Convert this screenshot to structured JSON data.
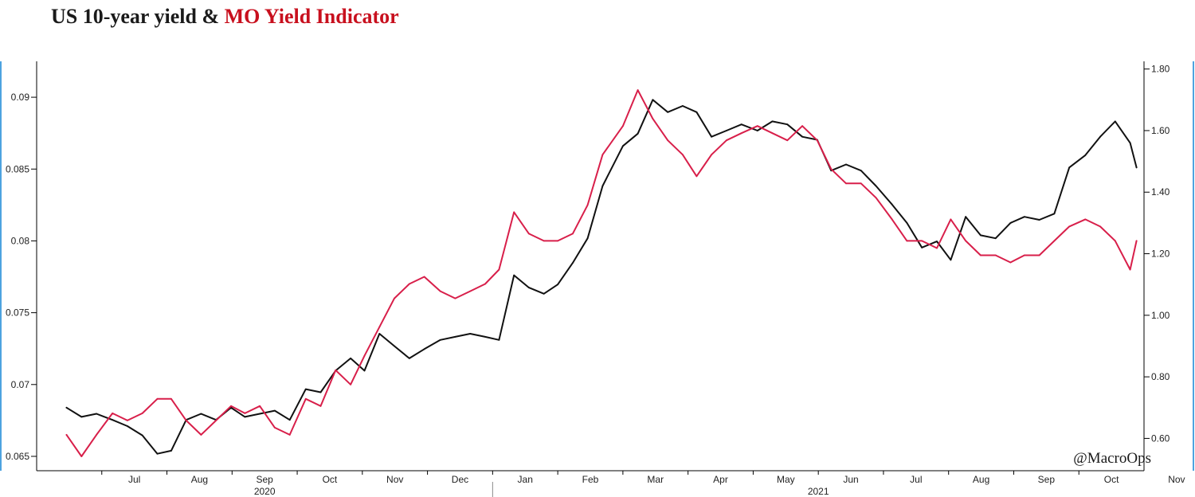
{
  "title": {
    "part1": "US 10-year yield & ",
    "part2": "MO Yield Indicator",
    "part2_color": "#c8101e"
  },
  "watermark": "@MacroOps",
  "chart_data": {
    "type": "line",
    "x_ticks": [
      "Jul",
      "Aug",
      "Sep",
      "Oct",
      "Nov",
      "Dec",
      "Jan",
      "Feb",
      "Mar",
      "Apr",
      "May",
      "Jun",
      "Jul",
      "Aug",
      "Sep",
      "Oct",
      "Nov"
    ],
    "x_start": "2020-06",
    "x_end": "2021-11",
    "years": [
      "2020",
      "2021"
    ],
    "y_left": {
      "ticks": [
        "0.065",
        "0.07",
        "0.075",
        "0.08",
        "0.085",
        "0.09"
      ],
      "range": [
        0.064,
        0.0925
      ]
    },
    "y_right": {
      "ticks": [
        "0.60",
        "0.80",
        "1.00",
        "1.20",
        "1.40",
        "1.60",
        "1.80"
      ],
      "range": [
        0.495,
        1.825
      ]
    },
    "series": [
      {
        "color": "#111111",
        "axis": "right",
        "points": [
          [
            "2020-06-15",
            0.7
          ],
          [
            "2020-06-22",
            0.67
          ],
          [
            "2020-06-29",
            0.68
          ],
          [
            "2020-07-06",
            0.66
          ],
          [
            "2020-07-13",
            0.64
          ],
          [
            "2020-07-20",
            0.61
          ],
          [
            "2020-07-27",
            0.55
          ],
          [
            "2020-08-03",
            0.56
          ],
          [
            "2020-08-10",
            0.66
          ],
          [
            "2020-08-17",
            0.68
          ],
          [
            "2020-08-24",
            0.66
          ],
          [
            "2020-08-31",
            0.7
          ],
          [
            "2020-09-07",
            0.67
          ],
          [
            "2020-09-14",
            0.68
          ],
          [
            "2020-09-21",
            0.69
          ],
          [
            "2020-09-28",
            0.66
          ],
          [
            "2020-10-05",
            0.76
          ],
          [
            "2020-10-12",
            0.75
          ],
          [
            "2020-10-19",
            0.82
          ],
          [
            "2020-10-26",
            0.86
          ],
          [
            "2020-11-02",
            0.82
          ],
          [
            "2020-11-09",
            0.94
          ],
          [
            "2020-11-16",
            0.9
          ],
          [
            "2020-11-23",
            0.86
          ],
          [
            "2020-11-30",
            0.89
          ],
          [
            "2020-12-07",
            0.92
          ],
          [
            "2020-12-14",
            0.93
          ],
          [
            "2020-12-21",
            0.94
          ],
          [
            "2020-12-28",
            0.93
          ],
          [
            "2021-01-04",
            0.92
          ],
          [
            "2021-01-11",
            1.13
          ],
          [
            "2021-01-18",
            1.09
          ],
          [
            "2021-01-25",
            1.07
          ],
          [
            "2021-02-01",
            1.1
          ],
          [
            "2021-02-08",
            1.17
          ],
          [
            "2021-02-15",
            1.25
          ],
          [
            "2021-02-22",
            1.42
          ],
          [
            "2021-03-01",
            1.55
          ],
          [
            "2021-03-08",
            1.59
          ],
          [
            "2021-03-15",
            1.7
          ],
          [
            "2021-03-22",
            1.66
          ],
          [
            "2021-03-29",
            1.68
          ],
          [
            "2021-04-05",
            1.66
          ],
          [
            "2021-04-12",
            1.58
          ],
          [
            "2021-04-19",
            1.6
          ],
          [
            "2021-04-26",
            1.62
          ],
          [
            "2021-05-03",
            1.6
          ],
          [
            "2021-05-10",
            1.63
          ],
          [
            "2021-05-17",
            1.62
          ],
          [
            "2021-05-24",
            1.58
          ],
          [
            "2021-05-31",
            1.57
          ],
          [
            "2021-06-07",
            1.47
          ],
          [
            "2021-06-14",
            1.49
          ],
          [
            "2021-06-21",
            1.47
          ],
          [
            "2021-06-28",
            1.42
          ],
          [
            "2021-07-05",
            1.36
          ],
          [
            "2021-07-12",
            1.3
          ],
          [
            "2021-07-19",
            1.22
          ],
          [
            "2021-07-26",
            1.24
          ],
          [
            "2021-08-02",
            1.18
          ],
          [
            "2021-08-09",
            1.32
          ],
          [
            "2021-08-16",
            1.26
          ],
          [
            "2021-08-23",
            1.25
          ],
          [
            "2021-08-30",
            1.3
          ],
          [
            "2021-09-06",
            1.32
          ],
          [
            "2021-09-13",
            1.31
          ],
          [
            "2021-09-20",
            1.33
          ],
          [
            "2021-09-27",
            1.48
          ],
          [
            "2021-10-04",
            1.52
          ],
          [
            "2021-10-11",
            1.58
          ],
          [
            "2021-10-18",
            1.63
          ],
          [
            "2021-10-25",
            1.56
          ],
          [
            "2021-10-28",
            1.48
          ]
        ]
      },
      {
        "color": "#d81f4a",
        "axis": "left",
        "points": [
          [
            "2020-06-15",
            0.0665
          ],
          [
            "2020-06-22",
            0.065
          ],
          [
            "2020-06-29",
            0.0665
          ],
          [
            "2020-07-06",
            0.068
          ],
          [
            "2020-07-13",
            0.0675
          ],
          [
            "2020-07-20",
            0.068
          ],
          [
            "2020-07-27",
            0.069
          ],
          [
            "2020-08-03",
            0.069
          ],
          [
            "2020-08-10",
            0.0675
          ],
          [
            "2020-08-17",
            0.0665
          ],
          [
            "2020-08-24",
            0.0675
          ],
          [
            "2020-08-31",
            0.0685
          ],
          [
            "2020-09-07",
            0.068
          ],
          [
            "2020-09-14",
            0.0685
          ],
          [
            "2020-09-21",
            0.067
          ],
          [
            "2020-09-28",
            0.0665
          ],
          [
            "2020-10-05",
            0.069
          ],
          [
            "2020-10-12",
            0.0685
          ],
          [
            "2020-10-19",
            0.071
          ],
          [
            "2020-10-26",
            0.07
          ],
          [
            "2020-11-02",
            0.072
          ],
          [
            "2020-11-09",
            0.074
          ],
          [
            "2020-11-16",
            0.076
          ],
          [
            "2020-11-23",
            0.077
          ],
          [
            "2020-11-30",
            0.0775
          ],
          [
            "2020-12-07",
            0.0765
          ],
          [
            "2020-12-14",
            0.076
          ],
          [
            "2020-12-21",
            0.0765
          ],
          [
            "2020-12-28",
            0.077
          ],
          [
            "2021-01-04",
            0.078
          ],
          [
            "2021-01-11",
            0.082
          ],
          [
            "2021-01-18",
            0.0805
          ],
          [
            "2021-01-25",
            0.08
          ],
          [
            "2021-02-01",
            0.08
          ],
          [
            "2021-02-08",
            0.0805
          ],
          [
            "2021-02-15",
            0.0825
          ],
          [
            "2021-02-22",
            0.086
          ],
          [
            "2021-03-01",
            0.088
          ],
          [
            "2021-03-08",
            0.0905
          ],
          [
            "2021-03-15",
            0.0885
          ],
          [
            "2021-03-22",
            0.087
          ],
          [
            "2021-03-29",
            0.086
          ],
          [
            "2021-04-05",
            0.0845
          ],
          [
            "2021-04-12",
            0.086
          ],
          [
            "2021-04-19",
            0.087
          ],
          [
            "2021-04-26",
            0.0875
          ],
          [
            "2021-05-03",
            0.088
          ],
          [
            "2021-05-10",
            0.0875
          ],
          [
            "2021-05-17",
            0.087
          ],
          [
            "2021-05-24",
            0.088
          ],
          [
            "2021-05-31",
            0.087
          ],
          [
            "2021-06-07",
            0.085
          ],
          [
            "2021-06-14",
            0.084
          ],
          [
            "2021-06-21",
            0.084
          ],
          [
            "2021-06-28",
            0.083
          ],
          [
            "2021-07-05",
            0.0815
          ],
          [
            "2021-07-12",
            0.08
          ],
          [
            "2021-07-19",
            0.08
          ],
          [
            "2021-07-26",
            0.0795
          ],
          [
            "2021-08-02",
            0.0815
          ],
          [
            "2021-08-09",
            0.08
          ],
          [
            "2021-08-16",
            0.079
          ],
          [
            "2021-08-23",
            0.079
          ],
          [
            "2021-08-30",
            0.0785
          ],
          [
            "2021-09-06",
            0.079
          ],
          [
            "2021-09-13",
            0.079
          ],
          [
            "2021-09-20",
            0.08
          ],
          [
            "2021-09-27",
            0.081
          ],
          [
            "2021-10-04",
            0.0815
          ],
          [
            "2021-10-11",
            0.081
          ],
          [
            "2021-10-18",
            0.08
          ],
          [
            "2021-10-25",
            0.078
          ],
          [
            "2021-10-28",
            0.08
          ]
        ]
      }
    ],
    "grid": false
  }
}
